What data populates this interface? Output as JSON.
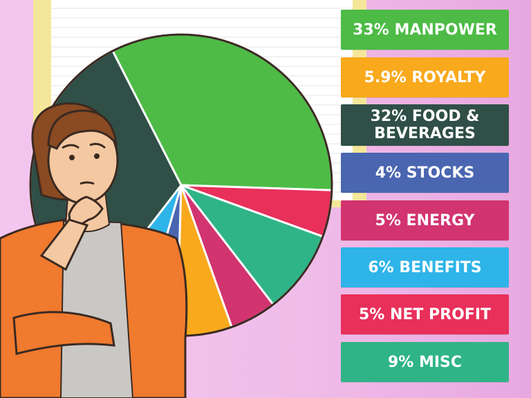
{
  "chart_data": {
    "type": "pie",
    "slices": [
      {
        "label": "33% MANPOWER",
        "value": 33,
        "color": "#4dbb46"
      },
      {
        "label": "5.9% ROYALTY",
        "value": 5.9,
        "color": "#f9a91c"
      },
      {
        "label": "32% FOOD & BEVERAGES",
        "value": 32,
        "color": "#2f4f47"
      },
      {
        "label": "4% STOCKS",
        "value": 4,
        "color": "#4a66b0"
      },
      {
        "label": "5% ENERGY",
        "value": 5,
        "color": "#d2346f"
      },
      {
        "label": "6% BENEFITS",
        "value": 6,
        "color": "#2eb4e8"
      },
      {
        "label": "5% NET PROFIT",
        "value": 5,
        "color": "#e8305a"
      },
      {
        "label": "9% MISC",
        "value": 9,
        "color": "#2fb487"
      }
    ],
    "legend": "right"
  },
  "labels": [
    {
      "lines": [
        "33% MANPOWER"
      ],
      "color": "#4dbb46"
    },
    {
      "lines": [
        "5.9% ROYALTY"
      ],
      "color": "#f9a91c"
    },
    {
      "lines": [
        "32% FOOD &",
        "BEVERAGES"
      ],
      "color": "#2f4f47"
    },
    {
      "lines": [
        "4% STOCKS"
      ],
      "color": "#4a66b0"
    },
    {
      "lines": [
        "5% ENERGY"
      ],
      "color": "#d2346f"
    },
    {
      "lines": [
        "6% BENEFITS"
      ],
      "color": "#2eb4e8"
    },
    {
      "lines": [
        "5% NET PROFIT"
      ],
      "color": "#e8305a"
    },
    {
      "lines": [
        "9% MISC"
      ],
      "color": "#2fb487"
    }
  ]
}
